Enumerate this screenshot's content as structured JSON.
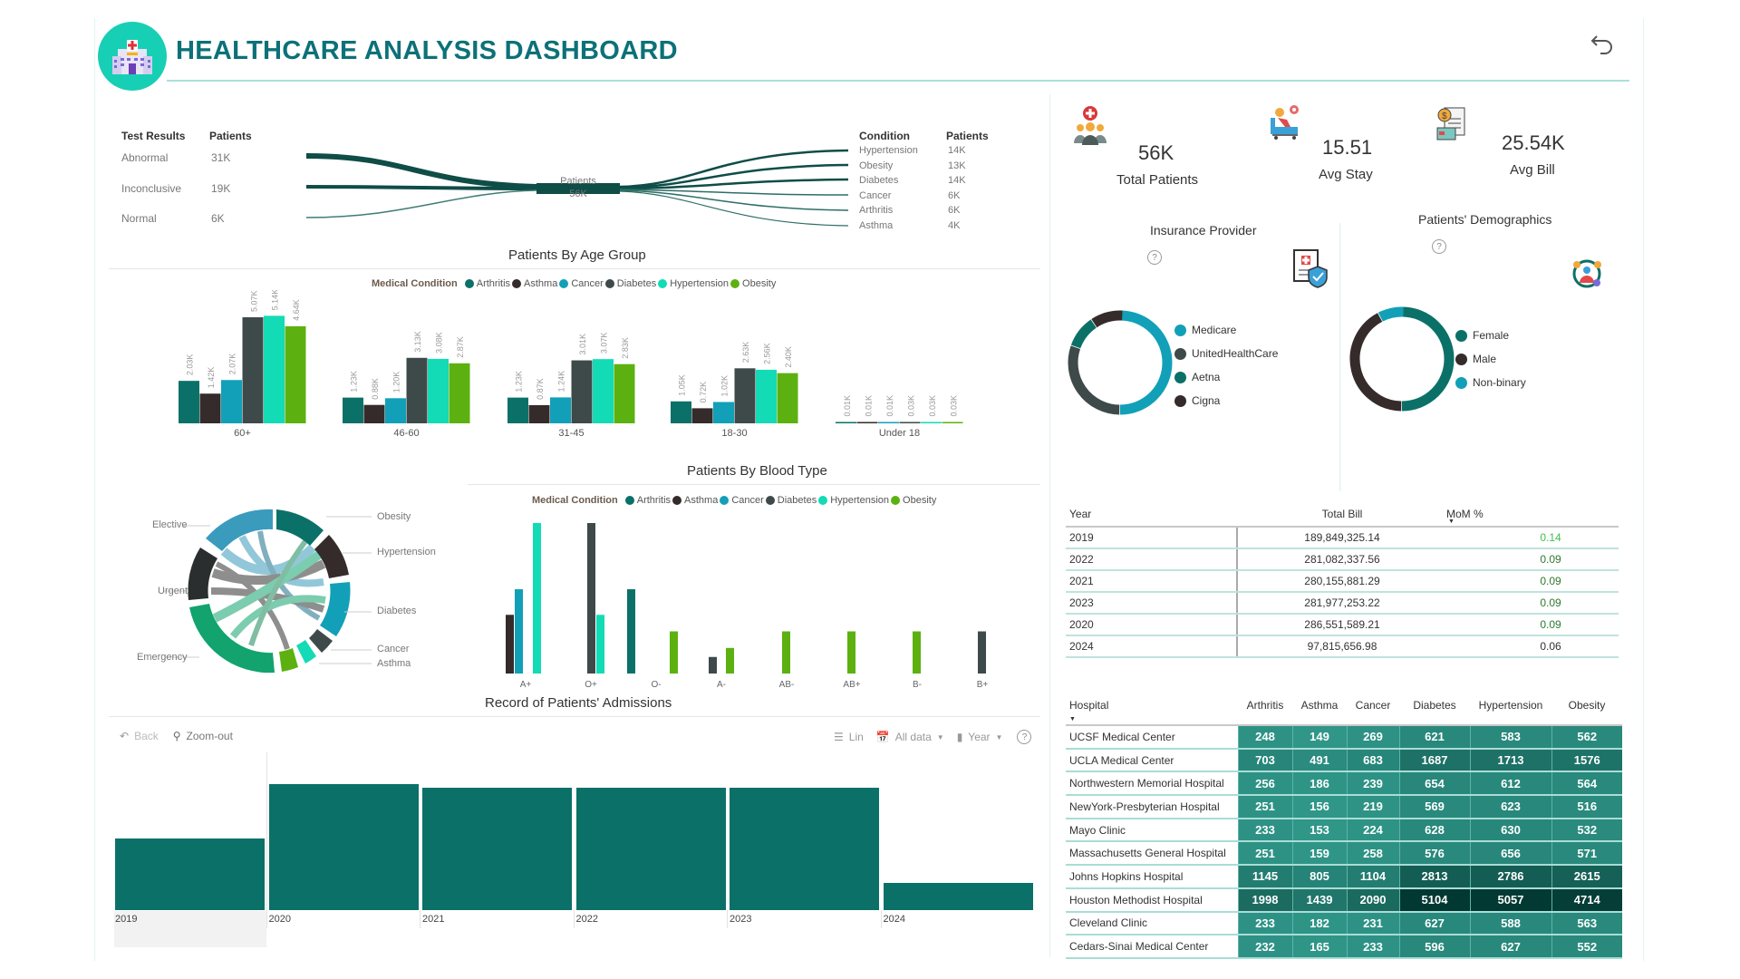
{
  "header": {
    "title": "HEALTHCARE ANALYSIS DASHBOARD",
    "logo_icon": "hospital-icon",
    "back_icon": "undo-arrow-icon"
  },
  "sankey": {
    "left_headers": [
      "Test Results",
      "Patients"
    ],
    "left_rows": [
      {
        "label": "Abnormal",
        "value": "31K"
      },
      {
        "label": "Inconclusive",
        "value": "19K"
      },
      {
        "label": "Normal",
        "value": "6K"
      }
    ],
    "center_label": "Patients",
    "center_value": "56K",
    "right_headers": [
      "Condition",
      "Patients"
    ],
    "right_rows": [
      {
        "label": "Hypertension",
        "value": "14K"
      },
      {
        "label": "Obesity",
        "value": "13K"
      },
      {
        "label": "Diabetes",
        "value": "14K"
      },
      {
        "label": "Cancer",
        "value": "6K"
      },
      {
        "label": "Arthritis",
        "value": "6K"
      },
      {
        "label": "Asthma",
        "value": "4K"
      }
    ]
  },
  "colors": {
    "Arthritis": "#0b7168",
    "Asthma": "#352b2b",
    "Cancer": "#12a0b8",
    "Diabetes": "#3e4a4a",
    "Hypertension": "#12dbb5",
    "Obesity": "#5cb110"
  },
  "kpis": [
    {
      "value": "56K",
      "label": "Total Patients",
      "icon": "patients-group-icon"
    },
    {
      "value": "15.51",
      "label": "Avg Stay",
      "icon": "hospital-bed-icon"
    },
    {
      "value": "25.54K",
      "label": "Avg Bill",
      "icon": "bill-invoice-icon"
    }
  ],
  "insurance": {
    "title": "Insurance Provider",
    "icon": "insurance-shield-icon",
    "legend": [
      {
        "label": "Medicare",
        "color": "#12a0b8"
      },
      {
        "label": "UnitedHealthCare",
        "color": "#3e4a4a"
      },
      {
        "label": "Aetna",
        "color": "#0b7168"
      },
      {
        "label": "Cigna",
        "color": "#352b2b"
      }
    ]
  },
  "demographics": {
    "title": "Patients' Demographics",
    "icon": "demographics-icon",
    "legend": [
      {
        "label": "Female",
        "color": "#0b7168"
      },
      {
        "label": "Male",
        "color": "#352b2b"
      },
      {
        "label": "Non-binary",
        "color": "#12a0b8"
      }
    ]
  },
  "year_table": {
    "headers": [
      "Year",
      "Total Bill",
      "MoM %"
    ],
    "rows": [
      {
        "year": "2019",
        "total": "189,849,325.14",
        "mom": "0.14",
        "mom_color": "#3fbf4a"
      },
      {
        "year": "2022",
        "total": "281,082,337.56",
        "mom": "0.09",
        "mom_color": "#2f7a2f"
      },
      {
        "year": "2021",
        "total": "280,155,881.29",
        "mom": "0.09",
        "mom_color": "#2f7a2f"
      },
      {
        "year": "2023",
        "total": "281,977,253.22",
        "mom": "0.09",
        "mom_color": "#2f7a2f"
      },
      {
        "year": "2020",
        "total": "286,551,589.21",
        "mom": "0.09",
        "mom_color": "#2f7a2f"
      },
      {
        "year": "2024",
        "total": "97,815,656.98",
        "mom": "0.06",
        "mom_color": "#333333"
      }
    ]
  },
  "hospital_table": {
    "headers": [
      "Hospital",
      "Arthritis",
      "Asthma",
      "Cancer",
      "Diabetes",
      "Hypertension",
      "Obesity"
    ],
    "rows": [
      {
        "name": "UCSF Medical Center",
        "values": [
          248,
          149,
          269,
          621,
          583,
          562
        ]
      },
      {
        "name": "UCLA Medical Center",
        "values": [
          703,
          491,
          683,
          1687,
          1713,
          1576
        ]
      },
      {
        "name": "Northwestern Memorial Hospital",
        "values": [
          256,
          186,
          239,
          654,
          612,
          564
        ]
      },
      {
        "name": "NewYork-Presbyterian Hospital",
        "values": [
          251,
          156,
          219,
          569,
          623,
          516
        ]
      },
      {
        "name": "Mayo Clinic",
        "values": [
          233,
          153,
          224,
          628,
          630,
          532
        ]
      },
      {
        "name": "Massachusetts General Hospital",
        "values": [
          251,
          159,
          258,
          576,
          656,
          571
        ]
      },
      {
        "name": "Johns Hopkins Hospital",
        "values": [
          1145,
          805,
          1104,
          2813,
          2786,
          2615
        ]
      },
      {
        "name": "Houston Methodist Hospital",
        "values": [
          1998,
          1439,
          2090,
          5104,
          5057,
          4714
        ]
      },
      {
        "name": "Cleveland Clinic",
        "values": [
          233,
          182,
          231,
          627,
          588,
          563
        ]
      },
      {
        "name": "Cedars-Sinai Medical Center",
        "values": [
          232,
          165,
          233,
          596,
          627,
          552
        ]
      }
    ]
  },
  "chart_data": [
    {
      "type": "bar",
      "title": "Patients By Age Group",
      "legend_title": "Medical Condition",
      "legend_position": "top",
      "series_names": [
        "Arthritis",
        "Asthma",
        "Cancer",
        "Diabetes",
        "Hypertension",
        "Obesity"
      ],
      "categories": [
        "60+",
        "46-60",
        "31-45",
        "18-30",
        "Under 18"
      ],
      "series": [
        {
          "name": "Arthritis",
          "values": [
            2.03,
            1.23,
            1.23,
            1.05,
            0.01
          ],
          "labels": [
            "2.03K",
            "1.23K",
            "1.23K",
            "1.05K",
            "0.01K"
          ]
        },
        {
          "name": "Asthma",
          "values": [
            1.42,
            0.88,
            0.87,
            0.72,
            0.01
          ],
          "labels": [
            "1.42K",
            "0.88K",
            "0.87K",
            "0.72K",
            "0.01K"
          ]
        },
        {
          "name": "Cancer",
          "values": [
            2.07,
            1.2,
            1.24,
            1.02,
            0.01
          ],
          "labels": [
            "2.07K",
            "1.20K",
            "1.24K",
            "1.02K",
            "0.01K"
          ]
        },
        {
          "name": "Diabetes",
          "values": [
            5.07,
            3.13,
            3.01,
            2.63,
            0.03
          ],
          "labels": [
            "5.07K",
            "3.13K",
            "3.01K",
            "2.63K",
            "0.03K"
          ]
        },
        {
          "name": "Hypertension",
          "values": [
            5.14,
            3.08,
            3.07,
            2.56,
            0.03
          ],
          "labels": [
            "5.14K",
            "3.08K",
            "3.07K",
            "2.56K",
            "0.03K"
          ]
        },
        {
          "name": "Obesity",
          "values": [
            4.64,
            2.87,
            2.83,
            2.4,
            0.03
          ],
          "labels": [
            "4.64K",
            "2.87K",
            "2.83K",
            "2.40K",
            "0.03K"
          ]
        }
      ],
      "ylim": [
        0,
        5.2
      ],
      "unit": "K"
    },
    {
      "type": "bar",
      "title": "Patients By Blood Type",
      "legend_title": "Medical Condition",
      "legend_position": "top",
      "series_names": [
        "Arthritis",
        "Asthma",
        "Cancer",
        "Diabetes",
        "Hypertension",
        "Obesity"
      ],
      "categories": [
        "A+",
        "O+",
        "O-",
        "A-",
        "AB-",
        "AB+",
        "B-",
        "B+"
      ],
      "bars": [
        {
          "category": "A+",
          "series": "Asthma",
          "value": 0.39
        },
        {
          "category": "A+",
          "series": "Cancer",
          "value": 0.56
        },
        {
          "category": "A+",
          "series": "Hypertension",
          "value": 1.0
        },
        {
          "category": "O+",
          "series": "Diabetes",
          "value": 1.0
        },
        {
          "category": "O+",
          "series": "Hypertension",
          "value": 0.39
        },
        {
          "category": "O-",
          "series": "Arthritis",
          "value": 0.56
        },
        {
          "category": "O-",
          "series": "Obesity",
          "value": 0.28
        },
        {
          "category": "A-",
          "series": "Diabetes",
          "value": 0.11
        },
        {
          "category": "A-",
          "series": "Obesity",
          "value": 0.17
        },
        {
          "category": "AB-",
          "series": "Obesity",
          "value": 0.28
        },
        {
          "category": "AB+",
          "series": "Obesity",
          "value": 0.28
        },
        {
          "category": "B-",
          "series": "Obesity",
          "value": 0.28
        },
        {
          "category": "B+",
          "series": "Diabetes",
          "value": 0.28
        }
      ],
      "ylim": [
        0,
        1.0
      ],
      "note": "relative heights; no axis values shown"
    },
    {
      "type": "pie",
      "title": "Insurance Provider",
      "labels": [
        "Medicare",
        "UnitedHealthCare",
        "Aetna",
        "Cigna"
      ],
      "values": [
        50,
        30,
        10,
        10
      ]
    },
    {
      "type": "pie",
      "title": "Patients' Demographics",
      "labels": [
        "Female",
        "Male",
        "Non-binary"
      ],
      "values": [
        50,
        42,
        8
      ]
    },
    {
      "type": "bar",
      "title": "Record of Patients' Admissions",
      "categories": [
        "2019",
        "2020",
        "2021",
        "2022",
        "2023",
        "2024"
      ],
      "values": [
        0.53,
        0.93,
        0.9,
        0.9,
        0.9,
        0.2
      ],
      "note": "relative heights; no axis values shown",
      "ylim": [
        0,
        1
      ]
    },
    {
      "type": "chord",
      "title": "Admission Type vs Condition",
      "left_labels": [
        "Elective",
        "Urgent",
        "Emergency"
      ],
      "right_labels": [
        "Obesity",
        "Hypertension",
        "Diabetes",
        "Cancer",
        "Asthma"
      ]
    }
  ],
  "admissions": {
    "title": "Record of Patients' Admissions",
    "toolbar": {
      "back": "Back",
      "zoom_out": "Zoom-out",
      "lin": "Lin",
      "all_data": "All data",
      "year": "Year",
      "help": "?"
    }
  },
  "help_icon": "?"
}
